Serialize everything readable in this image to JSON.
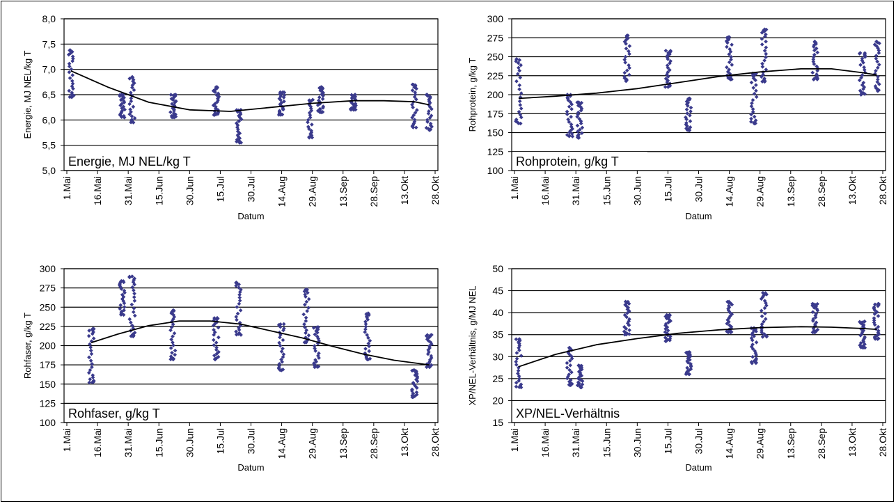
{
  "chart_data": [
    {
      "type": "scatter",
      "id": "energie",
      "inset_label": "Energie, MJ NEL/kg T",
      "xlabel": "Datum",
      "ylabel": "Energie, MJ NEL/kg T",
      "ylim": [
        5.0,
        8.0
      ],
      "yticks": [
        "5,0",
        "5,5",
        "6,0",
        "6,5",
        "7,0",
        "7,5",
        "8,0"
      ],
      "ytick_values": [
        5.0,
        5.5,
        6.0,
        6.5,
        7.0,
        7.5,
        8.0
      ],
      "xlim": [
        0,
        180
      ],
      "xticks": [
        "1.Mai",
        "16.Mai",
        "31.Mai",
        "15.Jun",
        "30.Jun",
        "15.Jul",
        "30.Jul",
        "14.Aug",
        "29.Aug",
        "13.Sep",
        "28.Sep",
        "13.Okt",
        "28.Okt"
      ],
      "grid": true,
      "clusters": [
        {
          "x": 2,
          "min": 6.45,
          "max": 7.38
        },
        {
          "x": 27,
          "min": 6.05,
          "max": 6.5
        },
        {
          "x": 32,
          "min": 5.95,
          "max": 6.85
        },
        {
          "x": 52,
          "min": 6.05,
          "max": 6.5
        },
        {
          "x": 73,
          "min": 6.1,
          "max": 6.65
        },
        {
          "x": 84,
          "min": 5.55,
          "max": 6.2
        },
        {
          "x": 105,
          "min": 6.1,
          "max": 6.55
        },
        {
          "x": 119,
          "min": 5.65,
          "max": 6.4
        },
        {
          "x": 124,
          "min": 6.15,
          "max": 6.65
        },
        {
          "x": 140,
          "min": 6.2,
          "max": 6.5
        },
        {
          "x": 170,
          "min": 5.85,
          "max": 6.7
        },
        {
          "x": 177,
          "min": 5.8,
          "max": 6.5
        }
      ],
      "trend": {
        "x": [
          2,
          20,
          40,
          60,
          80,
          100,
          120,
          140,
          155,
          170,
          177
        ],
        "y": [
          6.97,
          6.65,
          6.35,
          6.2,
          6.17,
          6.25,
          6.33,
          6.38,
          6.38,
          6.36,
          6.3
        ]
      }
    },
    {
      "type": "scatter",
      "id": "rohprotein",
      "inset_label": "Rohprotein, g/kg T",
      "xlabel": "Datum",
      "ylabel": "Rohprotein, g/kg T",
      "ylim": [
        100,
        300
      ],
      "yticks": [
        "100",
        "125",
        "150",
        "175",
        "200",
        "225",
        "250",
        "275",
        "300"
      ],
      "ytick_values": [
        100,
        125,
        150,
        175,
        200,
        225,
        250,
        275,
        300
      ],
      "xlim": [
        0,
        180
      ],
      "xticks": [
        "1.Mai",
        "16.Mai",
        "31.Mai",
        "15.Jun",
        "30.Jun",
        "15.Jul",
        "30.Jul",
        "14.Aug",
        "29.Aug",
        "13.Sep",
        "28.Sep",
        "13.Okt",
        "28.Okt"
      ],
      "grid": true,
      "clusters": [
        {
          "x": 2,
          "min": 162,
          "max": 247
        },
        {
          "x": 27,
          "min": 145,
          "max": 200
        },
        {
          "x": 32,
          "min": 143,
          "max": 190
        },
        {
          "x": 55,
          "min": 218,
          "max": 278
        },
        {
          "x": 75,
          "min": 210,
          "max": 258
        },
        {
          "x": 85,
          "min": 153,
          "max": 195
        },
        {
          "x": 105,
          "min": 220,
          "max": 276
        },
        {
          "x": 117,
          "min": 162,
          "max": 228
        },
        {
          "x": 122,
          "min": 217,
          "max": 286
        },
        {
          "x": 147,
          "min": 220,
          "max": 270
        },
        {
          "x": 170,
          "min": 200,
          "max": 255
        },
        {
          "x": 177,
          "min": 205,
          "max": 270
        }
      ],
      "trend": {
        "x": [
          2,
          20,
          40,
          60,
          80,
          100,
          120,
          140,
          155,
          170,
          177
        ],
        "y": [
          195,
          198,
          202,
          208,
          216,
          224,
          230,
          234,
          234,
          229,
          226
        ]
      }
    },
    {
      "type": "scatter",
      "id": "rohfaser",
      "inset_label": "Rohfaser, g/kg T",
      "xlabel": "Datum",
      "ylabel": "Rohfaser, g/kg T",
      "ylim": [
        100,
        300
      ],
      "yticks": [
        "100",
        "125",
        "150",
        "175",
        "200",
        "225",
        "250",
        "275",
        "300"
      ],
      "ytick_values": [
        100,
        125,
        150,
        175,
        200,
        225,
        250,
        275,
        300
      ],
      "xlim": [
        0,
        180
      ],
      "xticks": [
        "1.Mai",
        "16.Mai",
        "31.Mai",
        "15.Jun",
        "30.Jun",
        "15.Jul",
        "30.Jul",
        "14.Aug",
        "29.Aug",
        "13.Sep",
        "28.Sep",
        "13.Okt",
        "28.Okt"
      ],
      "grid": true,
      "clusters": [
        {
          "x": 12,
          "min": 152,
          "max": 222
        },
        {
          "x": 27,
          "min": 240,
          "max": 284
        },
        {
          "x": 32,
          "min": 212,
          "max": 290
        },
        {
          "x": 52,
          "min": 182,
          "max": 246
        },
        {
          "x": 73,
          "min": 182,
          "max": 236
        },
        {
          "x": 84,
          "min": 214,
          "max": 282
        },
        {
          "x": 105,
          "min": 168,
          "max": 228
        },
        {
          "x": 117,
          "min": 204,
          "max": 273
        },
        {
          "x": 122,
          "min": 172,
          "max": 224
        },
        {
          "x": 147,
          "min": 182,
          "max": 242
        },
        {
          "x": 170,
          "min": 133,
          "max": 168
        },
        {
          "x": 177,
          "min": 172,
          "max": 214
        }
      ],
      "trend": {
        "x": [
          12,
          25,
          40,
          55,
          70,
          85,
          100,
          115,
          130,
          145,
          160,
          177
        ],
        "y": [
          204,
          215,
          226,
          232,
          232,
          228,
          219,
          210,
          199,
          189,
          181,
          175
        ]
      }
    },
    {
      "type": "scatter",
      "id": "xpnel",
      "inset_label": "XP/NEL-Verhältnis",
      "xlabel": "Datum",
      "ylabel": "XP/NEL-Verhältnis, g/MJ NEL",
      "ylim": [
        15,
        50
      ],
      "yticks": [
        "15",
        "20",
        "25",
        "30",
        "35",
        "40",
        "45",
        "50"
      ],
      "ytick_values": [
        15,
        20,
        25,
        30,
        35,
        40,
        45,
        50
      ],
      "xlim": [
        0,
        180
      ],
      "xticks": [
        "1.Mai",
        "16.Mai",
        "31.Mai",
        "15.Jun",
        "30.Jun",
        "15.Jul",
        "30.Jul",
        "14.Aug",
        "29.Aug",
        "13.Sep",
        "28.Sep",
        "13.Okt",
        "28.Okt"
      ],
      "grid": true,
      "clusters": [
        {
          "x": 2,
          "min": 23,
          "max": 34
        },
        {
          "x": 27,
          "min": 23.5,
          "max": 32
        },
        {
          "x": 32,
          "min": 23,
          "max": 28
        },
        {
          "x": 55,
          "min": 35,
          "max": 42.5
        },
        {
          "x": 75,
          "min": 33.5,
          "max": 39.5
        },
        {
          "x": 85,
          "min": 26,
          "max": 31
        },
        {
          "x": 105,
          "min": 35.5,
          "max": 42.5
        },
        {
          "x": 117,
          "min": 28.5,
          "max": 36.5
        },
        {
          "x": 122,
          "min": 34.5,
          "max": 44.5
        },
        {
          "x": 147,
          "min": 35.5,
          "max": 42
        },
        {
          "x": 170,
          "min": 32,
          "max": 38
        },
        {
          "x": 177,
          "min": 34,
          "max": 42
        }
      ],
      "trend": {
        "x": [
          2,
          20,
          40,
          60,
          80,
          100,
          120,
          140,
          155,
          170,
          177
        ],
        "y": [
          27.7,
          30.5,
          32.7,
          34.1,
          35.3,
          36.1,
          36.6,
          36.8,
          36.7,
          36.4,
          36.2
        ]
      }
    }
  ],
  "colors": {
    "point": "#3a3a8c",
    "line": "#000000",
    "grid": "#000000"
  }
}
